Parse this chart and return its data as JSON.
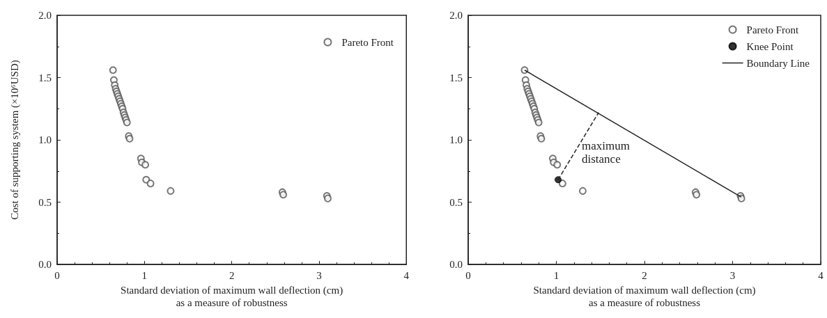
{
  "chart_data": [
    {
      "type": "scatter",
      "ylabel": "Cost of supporting system (×10⁶USD)",
      "xlabel": "Standard deviation of maximum wall deflection (cm)\nas a measure of robustness",
      "xlim": [
        0,
        4
      ],
      "xticks": [
        0,
        1,
        2,
        3,
        4
      ],
      "ylim": [
        0,
        2
      ],
      "yticks": [
        {
          "value": 0,
          "label": "0.0"
        },
        {
          "value": 0.5,
          "label": "0.5"
        },
        {
          "value": 1,
          "label": "1.0"
        },
        {
          "value": 1.5,
          "label": "1.5"
        },
        {
          "value": 2,
          "label": "2.0"
        }
      ],
      "grid": false,
      "legend": "top right",
      "series": [
        {
          "name": "Pareto Front",
          "color": "#555555",
          "x": [
            0.64,
            0.65,
            0.66,
            0.67,
            0.68,
            0.69,
            0.7,
            0.71,
            0.72,
            0.73,
            0.74,
            0.75,
            0.76,
            0.77,
            0.78,
            0.79,
            0.8,
            0.82,
            0.83,
            0.96,
            0.97,
            1.01,
            1.02,
            1.07,
            1.3,
            2.58,
            2.59,
            3.09,
            3.1
          ],
          "values": [
            1.56,
            1.48,
            1.44,
            1.41,
            1.39,
            1.37,
            1.35,
            1.33,
            1.31,
            1.29,
            1.27,
            1.25,
            1.22,
            1.2,
            1.18,
            1.16,
            1.14,
            1.03,
            1.01,
            0.85,
            0.82,
            0.8,
            0.68,
            0.65,
            0.59,
            0.58,
            0.56,
            0.55,
            0.53
          ]
        }
      ]
    },
    {
      "type": "scatter",
      "xlabel": "Standard deviation of maximum wall deflection (cm)\nas a measure of robustness",
      "xlim": [
        0,
        4
      ],
      "xticks": [
        0,
        1,
        2,
        3,
        4
      ],
      "ylim": [
        0,
        2
      ],
      "yticks": [
        {
          "value": 0,
          "label": "0.0"
        },
        {
          "value": 0.5,
          "label": "0.5"
        },
        {
          "value": 1,
          "label": "1.0"
        },
        {
          "value": 1.5,
          "label": "1.5"
        },
        {
          "value": 2,
          "label": "2.0"
        }
      ],
      "grid": false,
      "legend": "top right",
      "annotations": [
        "maximum\ndistance"
      ],
      "series": [
        {
          "name": "Pareto Front",
          "color": "#555555",
          "x": [
            0.64,
            0.65,
            0.66,
            0.67,
            0.68,
            0.69,
            0.7,
            0.71,
            0.72,
            0.73,
            0.74,
            0.75,
            0.76,
            0.77,
            0.78,
            0.79,
            0.8,
            0.82,
            0.83,
            0.96,
            0.97,
            1.01,
            1.07,
            1.3,
            2.58,
            2.59,
            3.09,
            3.1
          ],
          "values": [
            1.56,
            1.48,
            1.44,
            1.41,
            1.39,
            1.37,
            1.35,
            1.33,
            1.31,
            1.29,
            1.27,
            1.25,
            1.22,
            1.2,
            1.18,
            1.16,
            1.14,
            1.03,
            1.01,
            0.85,
            0.82,
            0.8,
            0.65,
            0.59,
            0.58,
            0.56,
            0.55,
            0.53
          ]
        },
        {
          "name": "Knee Point",
          "color": "#000000",
          "marker": "circle",
          "x": [
            1.02
          ],
          "values": [
            0.68
          ]
        },
        {
          "name": "Boundary Line",
          "type": "line",
          "color": "#222222",
          "marker": "none",
          "line_style": "solid",
          "x": [
            0.64,
            3.1
          ],
          "values": [
            1.56,
            0.54
          ]
        },
        {
          "type": "line",
          "color": "#222222",
          "marker": "none",
          "line_style": "dashed",
          "x": [
            1.02,
            1.48
          ],
          "values": [
            0.68,
            1.22
          ]
        }
      ]
    }
  ]
}
